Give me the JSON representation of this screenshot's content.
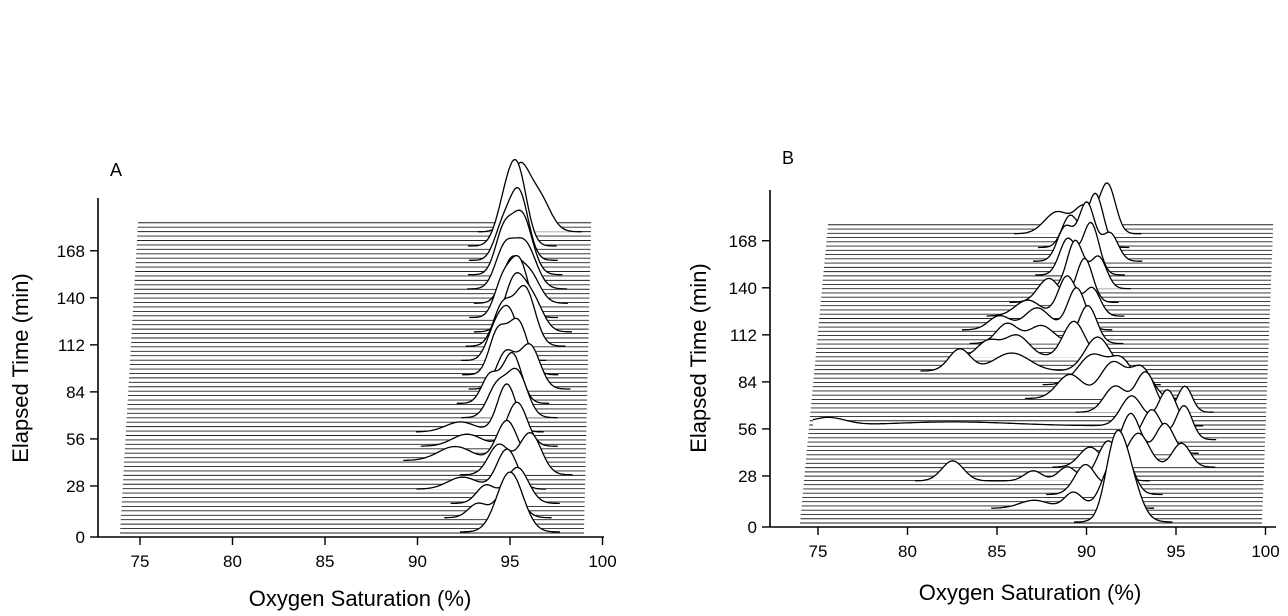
{
  "chart_data": [
    {
      "type": "area",
      "panel_label": "A",
      "xlabel": "Oxygen Saturation (%)",
      "ylabel": "Elapsed Time (min)",
      "xlim": [
        74,
        100
      ],
      "ylim": [
        0,
        168
      ],
      "x_ticks": [
        "75",
        "80",
        "85",
        "90",
        "95",
        "100"
      ],
      "y_ticks": [
        "0",
        "28",
        "56",
        "84",
        "112",
        "140",
        "168"
      ],
      "grid": false,
      "legend": "none",
      "traces": [
        {
          "time": 168,
          "peaks": [
            {
              "x": 94.5,
              "height": 62,
              "width": 0.55
            },
            {
              "x": 95.6,
              "height": 34,
              "width": 0.6
            }
          ]
        },
        {
          "time": 160,
          "peaks": [
            {
              "x": 94.5,
              "height": 70,
              "width": 0.5
            },
            {
              "x": 93.8,
              "height": 36,
              "width": 0.5
            }
          ]
        },
        {
          "time": 152,
          "peaks": [
            {
              "x": 94.6,
              "height": 68,
              "width": 0.5
            },
            {
              "x": 93.7,
              "height": 30,
              "width": 0.45
            }
          ]
        },
        {
          "time": 144,
          "peaks": [
            {
              "x": 94.8,
              "height": 60,
              "width": 0.55
            },
            {
              "x": 93.8,
              "height": 40,
              "width": 0.45
            }
          ]
        },
        {
          "time": 136,
          "peaks": [
            {
              "x": 95.0,
              "height": 46,
              "width": 0.6
            },
            {
              "x": 93.9,
              "height": 38,
              "width": 0.5
            }
          ]
        },
        {
          "time": 128,
          "peaks": [
            {
              "x": 94.3,
              "height": 40,
              "width": 0.5
            },
            {
              "x": 95.3,
              "height": 30,
              "width": 0.55
            }
          ]
        },
        {
          "time": 120,
          "peaks": [
            {
              "x": 94.8,
              "height": 56,
              "width": 0.5
            },
            {
              "x": 93.9,
              "height": 34,
              "width": 0.45
            }
          ]
        },
        {
          "time": 112,
          "peaks": [
            {
              "x": 94.6,
              "height": 52,
              "width": 0.55
            },
            {
              "x": 95.6,
              "height": 30,
              "width": 0.55
            }
          ]
        },
        {
          "time": 104,
          "peaks": [
            {
              "x": 95.2,
              "height": 58,
              "width": 0.55
            },
            {
              "x": 94.0,
              "height": 40,
              "width": 0.5
            }
          ]
        },
        {
          "time": 96,
          "peaks": [
            {
              "x": 94.4,
              "height": 48,
              "width": 0.5
            },
            {
              "x": 93.6,
              "height": 26,
              "width": 0.45
            }
          ]
        },
        {
          "time": 88,
          "peaks": [
            {
              "x": 94.9,
              "height": 54,
              "width": 0.55
            },
            {
              "x": 93.8,
              "height": 40,
              "width": 0.45
            }
          ]
        },
        {
          "time": 80,
          "peaks": [
            {
              "x": 95.6,
              "height": 44,
              "width": 0.55
            },
            {
              "x": 94.3,
              "height": 36,
              "width": 0.5
            }
          ]
        },
        {
          "time": 72,
          "peaks": [
            {
              "x": 94.7,
              "height": 50,
              "width": 0.5
            },
            {
              "x": 93.5,
              "height": 28,
              "width": 0.45
            }
          ]
        },
        {
          "time": 64,
          "peaks": [
            {
              "x": 95.0,
              "height": 46,
              "width": 0.55
            },
            {
              "x": 93.9,
              "height": 30,
              "width": 0.5
            }
          ]
        },
        {
          "time": 56,
          "peaks": [
            {
              "x": 94.5,
              "height": 48,
              "width": 0.5
            },
            {
              "x": 92.0,
              "height": 10,
              "width": 0.8
            }
          ]
        },
        {
          "time": 48,
          "peaks": [
            {
              "x": 95.1,
              "height": 44,
              "width": 0.55
            },
            {
              "x": 92.4,
              "height": 12,
              "width": 0.8
            }
          ]
        },
        {
          "time": 40,
          "peaks": [
            {
              "x": 94.6,
              "height": 40,
              "width": 0.55
            },
            {
              "x": 91.8,
              "height": 14,
              "width": 0.9
            }
          ]
        },
        {
          "time": 32,
          "peaks": [
            {
              "x": 95.9,
              "height": 42,
              "width": 0.6
            },
            {
              "x": 94.2,
              "height": 30,
              "width": 0.55
            }
          ]
        },
        {
          "time": 24,
          "peaks": [
            {
              "x": 94.7,
              "height": 40,
              "width": 0.55
            },
            {
              "x": 92.3,
              "height": 12,
              "width": 0.8
            }
          ]
        },
        {
          "time": 16,
          "peaks": [
            {
              "x": 95.3,
              "height": 36,
              "width": 0.6
            },
            {
              "x": 93.6,
              "height": 18,
              "width": 0.5
            }
          ]
        },
        {
          "time": 8,
          "peaks": [
            {
              "x": 94.9,
              "height": 34,
              "width": 0.6
            },
            {
              "x": 93.2,
              "height": 14,
              "width": 0.5
            }
          ]
        },
        {
          "time": 0,
          "peaks": [
            {
              "x": 95.0,
              "height": 60,
              "width": 0.7
            }
          ]
        }
      ]
    },
    {
      "type": "area",
      "panel_label": "B",
      "xlabel": "Oxygen Saturation (%)",
      "ylabel": "Elapsed Time (min)",
      "xlim": [
        74,
        100
      ],
      "ylim": [
        0,
        168
      ],
      "x_ticks": [
        "75",
        "80",
        "85",
        "90",
        "95",
        "100"
      ],
      "y_ticks": [
        "0",
        "28",
        "56",
        "84",
        "112",
        "140",
        "168"
      ],
      "grid": false,
      "legend": "none",
      "traces": [
        {
          "time": 168,
          "peaks": [
            {
              "x": 89.6,
              "height": 50,
              "width": 0.45
            },
            {
              "x": 86.8,
              "height": 22,
              "width": 0.7
            },
            {
              "x": 88.3,
              "height": 26,
              "width": 0.5
            }
          ]
        },
        {
          "time": 160,
          "peaks": [
            {
              "x": 89.0,
              "height": 54,
              "width": 0.45
            },
            {
              "x": 87.6,
              "height": 32,
              "width": 0.45
            }
          ]
        },
        {
          "time": 152,
          "peaks": [
            {
              "x": 88.6,
              "height": 58,
              "width": 0.45
            },
            {
              "x": 87.4,
              "height": 34,
              "width": 0.45
            },
            {
              "x": 89.9,
              "height": 28,
              "width": 0.45
            }
          ]
        },
        {
          "time": 144,
          "peaks": [
            {
              "x": 88.9,
              "height": 52,
              "width": 0.45
            },
            {
              "x": 87.6,
              "height": 36,
              "width": 0.45
            }
          ]
        },
        {
          "time": 136,
          "peaks": [
            {
              "x": 88.1,
              "height": 48,
              "width": 0.45
            },
            {
              "x": 89.4,
              "height": 32,
              "width": 0.45
            }
          ]
        },
        {
          "time": 128,
          "peaks": [
            {
              "x": 88.7,
              "height": 44,
              "width": 0.45
            },
            {
              "x": 86.7,
              "height": 24,
              "width": 0.6
            }
          ]
        },
        {
          "time": 120,
          "peaks": [
            {
              "x": 87.8,
              "height": 40,
              "width": 0.5
            },
            {
              "x": 89.2,
              "height": 28,
              "width": 0.45
            },
            {
              "x": 85.6,
              "height": 16,
              "width": 0.7
            }
          ]
        },
        {
          "time": 112,
          "peaks": [
            {
              "x": 88.4,
              "height": 42,
              "width": 0.5
            },
            {
              "x": 86.2,
              "height": 22,
              "width": 0.7
            },
            {
              "x": 84.1,
              "height": 14,
              "width": 0.6
            }
          ]
        },
        {
          "time": 104,
          "peaks": [
            {
              "x": 89.1,
              "height": 38,
              "width": 0.5
            },
            {
              "x": 84.6,
              "height": 20,
              "width": 0.6
            },
            {
              "x": 86.5,
              "height": 18,
              "width": 0.7
            }
          ]
        },
        {
          "time": 96,
          "peaks": [
            {
              "x": 88.4,
              "height": 36,
              "width": 0.6
            },
            {
              "x": 83.6,
              "height": 16,
              "width": 0.6
            },
            {
              "x": 85.2,
              "height": 22,
              "width": 0.7
            }
          ]
        },
        {
          "time": 88,
          "peaks": [
            {
              "x": 89.8,
              "height": 34,
              "width": 0.7
            },
            {
              "x": 82.1,
              "height": 22,
              "width": 0.6
            },
            {
              "x": 85.0,
              "height": 18,
              "width": 1.0
            }
          ]
        },
        {
          "time": 80,
          "peaks": [
            {
              "x": 89.6,
              "height": 30,
              "width": 0.8
            },
            {
              "x": 91.2,
              "height": 24,
              "width": 0.6
            }
          ]
        },
        {
          "time": 72,
          "peaks": [
            {
              "x": 90.8,
              "height": 36,
              "width": 0.7
            },
            {
              "x": 92.4,
              "height": 30,
              "width": 0.6
            },
            {
              "x": 88.4,
              "height": 24,
              "width": 0.7
            }
          ]
        },
        {
          "time": 64,
          "peaks": [
            {
              "x": 92.7,
              "height": 40,
              "width": 0.55
            },
            {
              "x": 91.0,
              "height": 26,
              "width": 0.6
            },
            {
              "x": 94.9,
              "height": 26,
              "width": 0.4
            }
          ]
        },
        {
          "time": 56,
          "peaks": [
            {
              "x": 94.0,
              "height": 36,
              "width": 0.5
            },
            {
              "x": 92.0,
              "height": 30,
              "width": 0.6
            },
            {
              "x": 75.0,
              "height": 8,
              "width": 1.0
            },
            {
              "x": 82.0,
              "height": 4,
              "width": 3.5
            }
          ]
        },
        {
          "time": 48,
          "peaks": [
            {
              "x": 95.0,
              "height": 34,
              "width": 0.45
            },
            {
              "x": 93.2,
              "height": 30,
              "width": 0.5
            }
          ]
        },
        {
          "time": 40,
          "peaks": [
            {
              "x": 92.1,
              "height": 40,
              "width": 0.5
            },
            {
              "x": 94.0,
              "height": 30,
              "width": 0.5
            }
          ]
        },
        {
          "time": 32,
          "peaks": [
            {
              "x": 92.6,
              "height": 34,
              "width": 0.6
            },
            {
              "x": 95.0,
              "height": 24,
              "width": 0.5
            },
            {
              "x": 89.9,
              "height": 20,
              "width": 0.6
            }
          ]
        },
        {
          "time": 24,
          "peaks": [
            {
              "x": 91.0,
              "height": 40,
              "width": 0.6
            },
            {
              "x": 82.3,
              "height": 20,
              "width": 0.6
            },
            {
              "x": 88.7,
              "height": 14,
              "width": 0.5
            },
            {
              "x": 86.8,
              "height": 10,
              "width": 0.5
            }
          ]
        },
        {
          "time": 16,
          "peaks": [
            {
              "x": 91.9,
              "height": 42,
              "width": 0.55
            },
            {
              "x": 89.8,
              "height": 30,
              "width": 0.6
            }
          ]
        },
        {
          "time": 8,
          "peaks": [
            {
              "x": 91.4,
              "height": 46,
              "width": 0.6
            },
            {
              "x": 89.2,
              "height": 16,
              "width": 0.5
            },
            {
              "x": 87.0,
              "height": 8,
              "width": 0.8
            }
          ]
        },
        {
          "time": 0,
          "peaks": [
            {
              "x": 92.1,
              "height": 64,
              "width": 0.7
            },
            {
              "x": 91.5,
              "height": 40,
              "width": 0.5
            }
          ]
        }
      ]
    }
  ]
}
